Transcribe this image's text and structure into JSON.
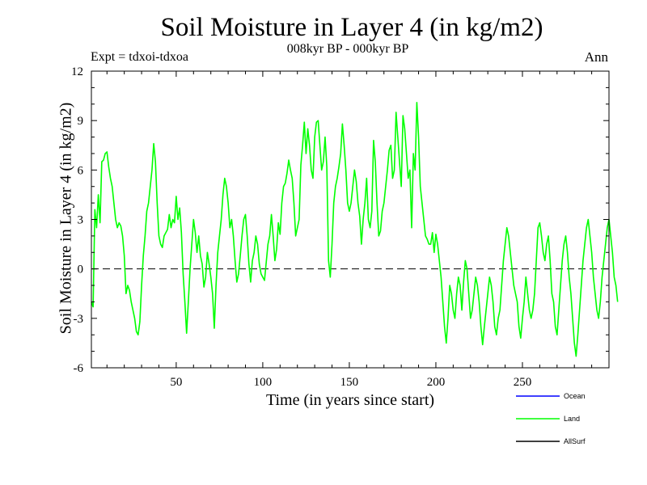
{
  "chart_data": {
    "type": "line",
    "title": "Soil Moisture in Layer 4 (in kg/m2)",
    "subtitle": "008kyr BP - 000kyr BP",
    "experiment": "Expt = tdxoi-tdxoa",
    "season": "Ann",
    "xlabel": "Time (in years since start)",
    "ylabel": "Soil Moisture in Layer 4 (in kg/m2)",
    "xlim": [
      1,
      300
    ],
    "ylim": [
      -6,
      12
    ],
    "xticks": [
      50,
      100,
      150,
      200,
      250
    ],
    "yticks": [
      -6,
      -3,
      0,
      3,
      6,
      9,
      12
    ],
    "zero_line": "dashed",
    "legend_placement": "bottom-right",
    "series": [
      {
        "name": "Ocean",
        "color": "#0000ff",
        "values": []
      },
      {
        "name": "Land",
        "color": "#00ff00",
        "x_start": 1,
        "x_step": 1,
        "values": [
          -2.0,
          -2.3,
          3.6,
          2.5,
          4.5,
          2.8,
          6.5,
          6.6,
          7.0,
          7.1,
          6.2,
          5.5,
          5.0,
          4.0,
          3.0,
          2.5,
          2.8,
          2.6,
          2.0,
          0.8,
          -1.5,
          -1.0,
          -1.3,
          -2.0,
          -2.5,
          -3.0,
          -3.8,
          -4.0,
          -3.2,
          -1.0,
          0.8,
          2.0,
          3.5,
          4.0,
          5.0,
          6.0,
          7.6,
          6.5,
          4.0,
          2.0,
          1.5,
          1.3,
          2.0,
          2.2,
          2.4,
          3.3,
          2.5,
          3.0,
          2.8,
          4.4,
          3.0,
          3.7,
          2.2,
          -0.3,
          -2.0,
          -3.9,
          -2.0,
          0.0,
          1.5,
          3.0,
          2.2,
          1.0,
          2.0,
          0.8,
          0.3,
          -1.1,
          -0.5,
          1.0,
          0.3,
          -0.5,
          -1.5,
          -3.6,
          -1.0,
          1.0,
          2.0,
          3.0,
          4.5,
          5.5,
          5.0,
          4.0,
          2.5,
          3.0,
          2.0,
          0.5,
          -0.8,
          -0.3,
          0.8,
          2.0,
          3.0,
          3.3,
          2.0,
          0.3,
          -0.8,
          0.5,
          1.0,
          2.0,
          1.5,
          0.3,
          -0.3,
          -0.5,
          -0.7,
          0.4,
          1.5,
          2.0,
          3.3,
          2.0,
          0.5,
          1.2,
          2.8,
          2.1,
          4.0,
          5.0,
          5.2,
          5.8,
          6.6,
          6.0,
          5.5,
          4.0,
          2.0,
          2.5,
          3.0,
          6.3,
          7.5,
          8.9,
          7.0,
          8.5,
          7.5,
          6.0,
          5.5,
          8.0,
          8.9,
          9.0,
          7.5,
          6.0,
          6.5,
          8.0,
          6.2,
          0.5,
          -0.5,
          1.5,
          4.0,
          5.0,
          5.5,
          6.2,
          7.0,
          8.8,
          7.5,
          6.0,
          4.0,
          3.5,
          4.0,
          5.0,
          6.0,
          5.3,
          4.0,
          3.2,
          1.5,
          3.0,
          4.0,
          5.5,
          3.0,
          2.5,
          3.5,
          7.8,
          6.5,
          4.0,
          2.0,
          2.3,
          3.5,
          4.0,
          5.0,
          6.0,
          7.2,
          7.5,
          5.5,
          6.0,
          9.5,
          8.0,
          6.5,
          5.0,
          9.3,
          8.5,
          7.0,
          5.5,
          6.0,
          2.5,
          7.0,
          6.0,
          10.1,
          8.0,
          5.0,
          4.0,
          3.0,
          2.0,
          1.8,
          1.5,
          1.5,
          2.2,
          1.0,
          2.1,
          1.5,
          0.5,
          -0.5,
          -2.0,
          -3.5,
          -4.5,
          -3.0,
          -1.0,
          -1.5,
          -2.5,
          -3.0,
          -1.5,
          -0.5,
          -1.0,
          -2.5,
          -0.8,
          0.5,
          0.0,
          -1.5,
          -3.0,
          -2.5,
          -1.5,
          -0.5,
          -1.0,
          -2.0,
          -3.5,
          -4.6,
          -3.5,
          -2.5,
          -1.5,
          -0.5,
          -1.0,
          -2.0,
          -3.5,
          -4.0,
          -3.0,
          -2.5,
          -1.0,
          0.5,
          1.5,
          2.5,
          2.0,
          1.0,
          0.0,
          -1.0,
          -1.5,
          -2.0,
          -3.5,
          -4.2,
          -3.0,
          -2.0,
          -0.5,
          -1.5,
          -2.5,
          -3.0,
          -2.5,
          -1.5,
          0.5,
          2.5,
          2.8,
          2.0,
          1.0,
          0.5,
          1.5,
          2.0,
          0.5,
          -1.5,
          -2.0,
          -3.5,
          -4.0,
          -2.5,
          -1.0,
          0.5,
          1.5,
          2.0,
          1.0,
          -0.5,
          -1.5,
          -3.0,
          -4.5,
          -5.3,
          -4.0,
          -2.5,
          -1.0,
          0.5,
          1.5,
          2.5,
          3.0,
          2.0,
          1.0,
          -0.5,
          -1.5,
          -2.5,
          -3.0,
          -2.0,
          -0.5,
          0.5,
          1.5,
          2.5,
          3.0,
          2.0,
          1.0,
          -0.5,
          -1.0,
          -2.0
        ]
      }
    ]
  },
  "legend": {
    "items": [
      {
        "label": "Ocean",
        "color": "#0000ff"
      },
      {
        "label": "Land",
        "color": "#00ff00"
      },
      {
        "label": "AllSurf",
        "color": "#000000"
      }
    ]
  }
}
